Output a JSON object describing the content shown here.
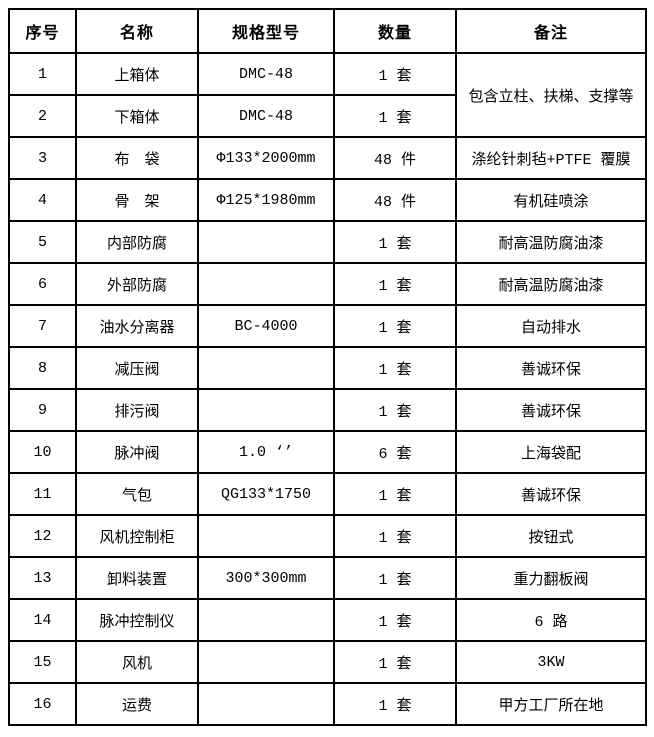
{
  "table": {
    "headers": [
      "序号",
      "名称",
      "规格型号",
      "数量",
      "备注"
    ],
    "rows": [
      {
        "no": "1",
        "name": "上箱体",
        "spec": "DMC-48",
        "qty": "1 套",
        "remark": "包含立柱、扶梯、支撑等",
        "remark_rowspan": 2
      },
      {
        "no": "2",
        "name": "下箱体",
        "spec": "DMC-48",
        "qty": "1 套",
        "remark": null
      },
      {
        "no": "3",
        "name": "布　袋",
        "spec": "Φ133*2000mm",
        "qty": "48 件",
        "remark": "涤纶针刺毡+PTFE 覆膜"
      },
      {
        "no": "4",
        "name": "骨　架",
        "spec": "Φ125*1980mm",
        "qty": "48 件",
        "remark": "有机硅喷涂"
      },
      {
        "no": "5",
        "name": "内部防腐",
        "spec": "",
        "qty": "1 套",
        "remark": "耐高温防腐油漆"
      },
      {
        "no": "6",
        "name": "外部防腐",
        "spec": "",
        "qty": "1 套",
        "remark": "耐高温防腐油漆"
      },
      {
        "no": "7",
        "name": "油水分离器",
        "spec": "BC-4000",
        "qty": "1 套",
        "remark": "自动排水"
      },
      {
        "no": "8",
        "name": "减压阀",
        "spec": "",
        "qty": "1 套",
        "remark": "善诚环保"
      },
      {
        "no": "9",
        "name": "排污阀",
        "spec": "",
        "qty": "1 套",
        "remark": "善诚环保"
      },
      {
        "no": "10",
        "name": "脉冲阀",
        "spec": "1.0 ‘’",
        "qty": "6 套",
        "remark": "上海袋配"
      },
      {
        "no": "11",
        "name": "气包",
        "spec": "QG133*1750",
        "qty": "1 套",
        "remark": "善诚环保"
      },
      {
        "no": "12",
        "name": "风机控制柜",
        "spec": "",
        "qty": "1 套",
        "remark": "按钮式"
      },
      {
        "no": "13",
        "name": "卸料装置",
        "spec": "300*300mm",
        "qty": "1 套",
        "remark": "重力翻板阀"
      },
      {
        "no": "14",
        "name": "脉冲控制仪",
        "spec": "",
        "qty": "1 套",
        "remark": "6 路"
      },
      {
        "no": "15",
        "name": "风机",
        "spec": "",
        "qty": "1 套",
        "remark": "3KW"
      },
      {
        "no": "16",
        "name": "运费",
        "spec": "",
        "qty": "1 套",
        "remark": "甲方工厂所在地"
      }
    ]
  }
}
